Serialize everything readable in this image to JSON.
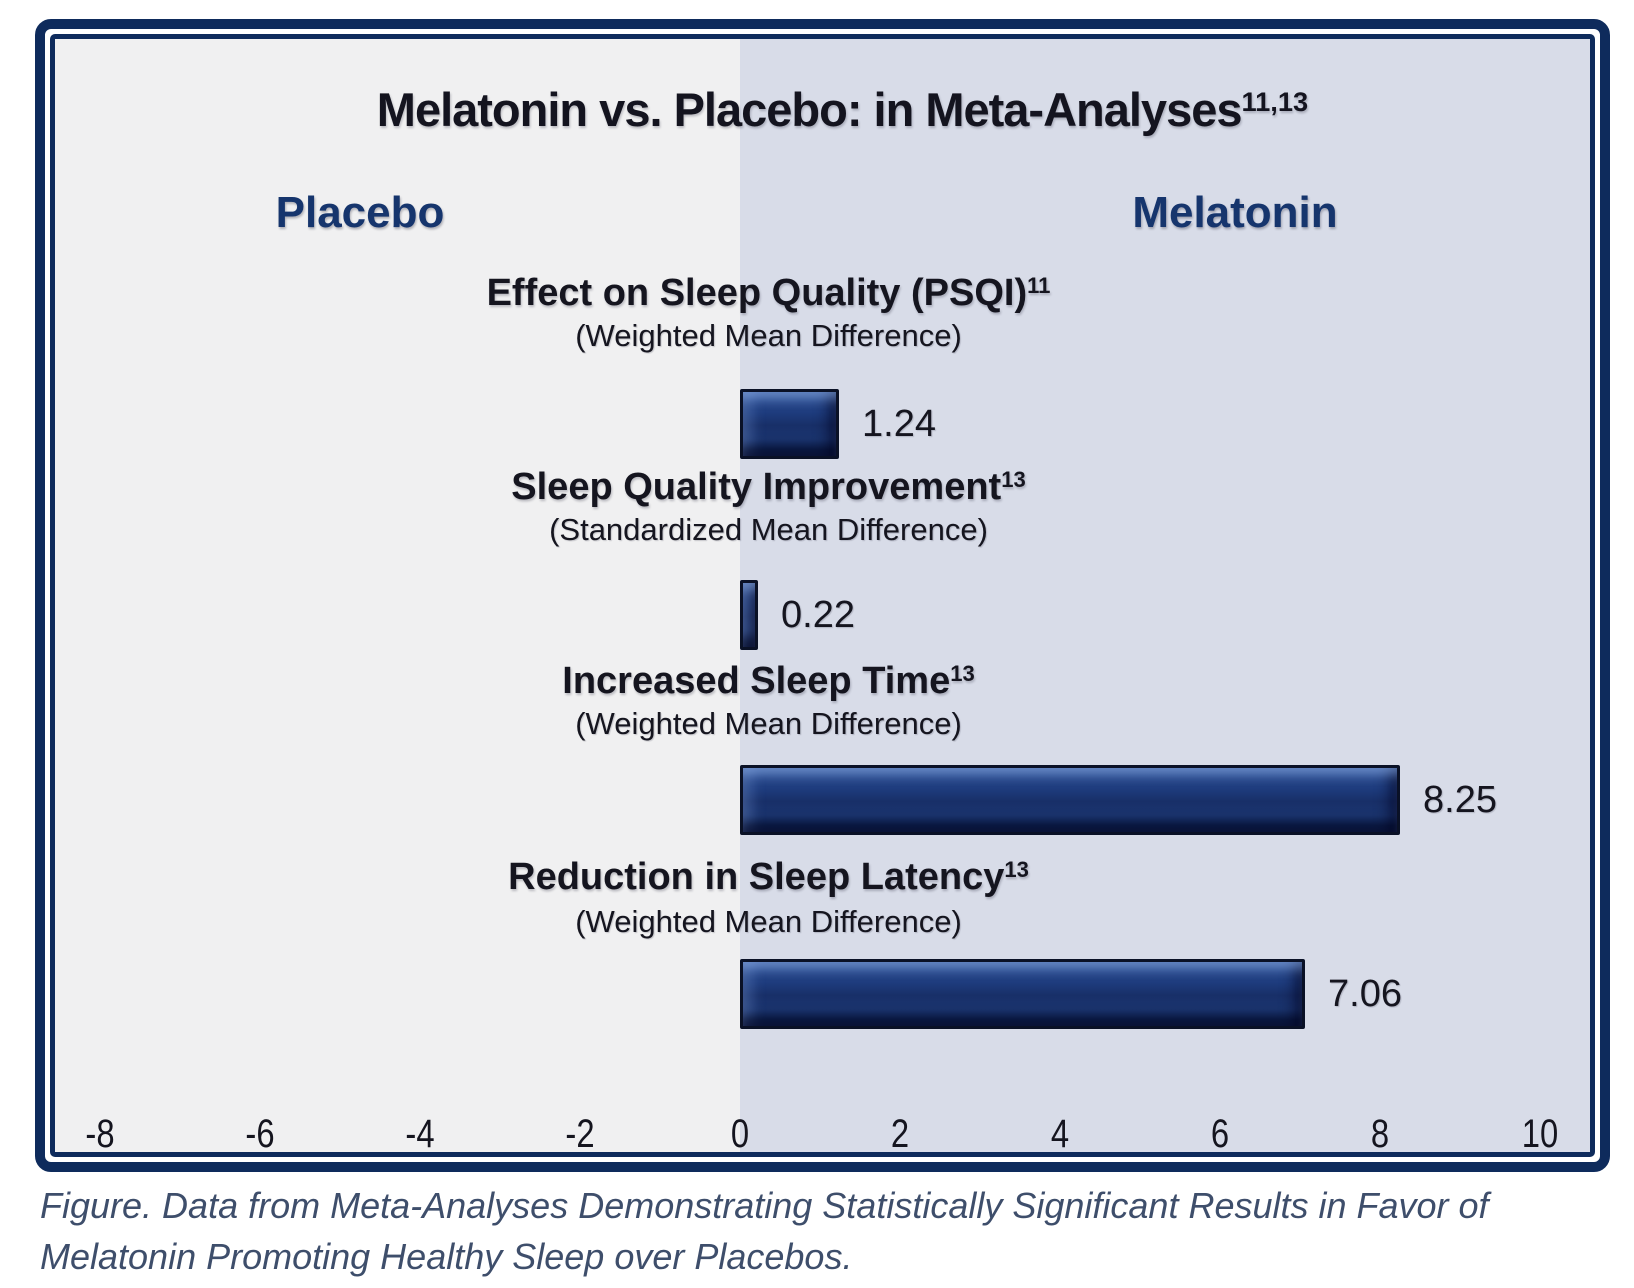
{
  "chart_data": {
    "type": "bar",
    "orientation": "horizontal",
    "title": "Melatonin vs. Placebo: in Meta-Analyses",
    "title_refs": "11,13",
    "left_header": "Placebo",
    "right_header": "Melatonin",
    "xlim": [
      -8,
      10
    ],
    "x_ticks": [
      -8,
      -6,
      -4,
      -2,
      0,
      2,
      4,
      6,
      8,
      10
    ],
    "grid": false,
    "legend_position": "top",
    "bars": [
      {
        "label": "Effect on Sleep Quality (PSQI)",
        "ref": "11",
        "measure": "(Weighted Mean Difference)",
        "value": 1.24,
        "value_label": "1.24"
      },
      {
        "label": "Sleep Quality Improvement",
        "ref": "13",
        "measure": "(Standardized Mean Difference)",
        "value": 0.22,
        "value_label": "0.22"
      },
      {
        "label": "Increased Sleep Time",
        "ref": "13",
        "measure": "(Weighted Mean Difference)",
        "value": 8.25,
        "value_label": "8.25"
      },
      {
        "label": "Reduction in Sleep Latency",
        "ref": "13",
        "measure": "(Weighted Mean Difference)",
        "value": 7.06,
        "value_label": "7.06"
      }
    ]
  },
  "caption": "Figure. Data from Meta-Analyses Demonstrating Statistically Significant Results in Favor of Melatonin Promoting Healthy Sleep over Placebos.",
  "colors": {
    "frame": "#0e2b5c",
    "left_bg": "#f0f0f1",
    "right_bg": "#d8dce8",
    "bar_fill": "#1c3a78",
    "header_navy": "#16356d",
    "title_ink": "#14141f",
    "ink": "#15151f",
    "caption_ink": "#3e4e6b"
  }
}
